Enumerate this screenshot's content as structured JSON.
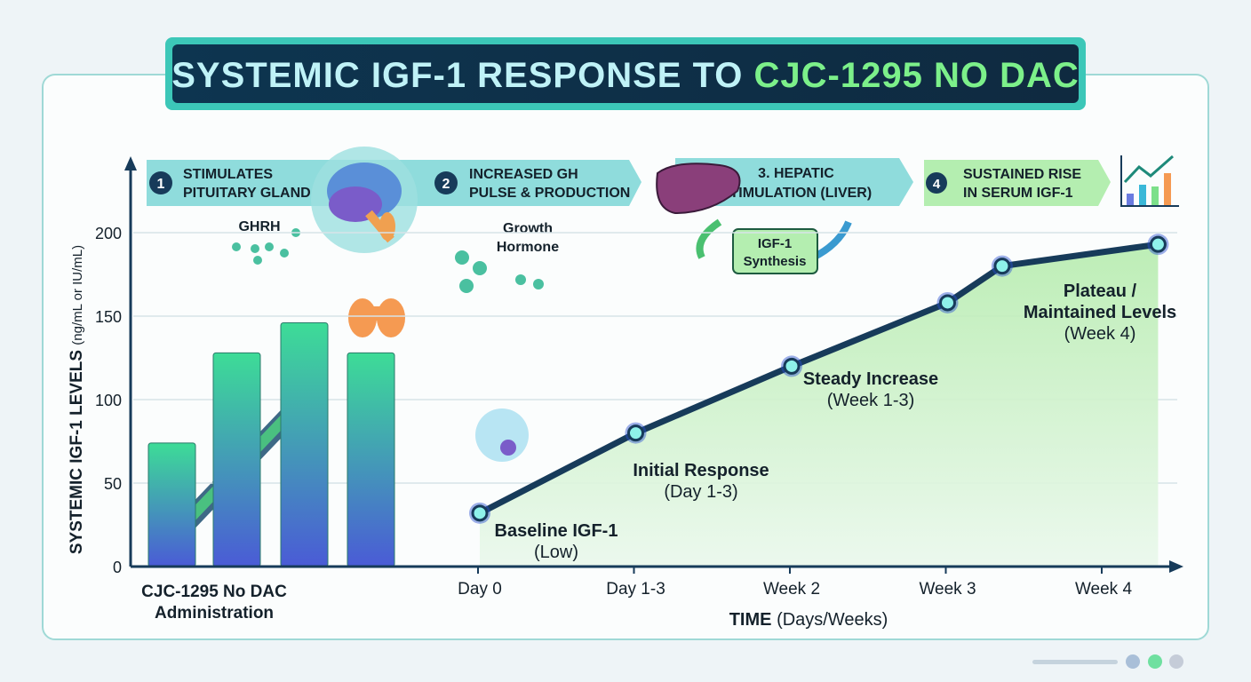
{
  "title": {
    "part1": "SYSTEMIC IGF-1 RESPONSE TO ",
    "part2": "CJC-1295 NO DAC"
  },
  "steps": [
    {
      "num": "1",
      "line1": "STIMULATES",
      "line2": "PITUITARY GLAND"
    },
    {
      "num": "2",
      "line1": "INCREASED GH",
      "line2": "PULSE & PRODUCTION"
    },
    {
      "num": "",
      "line1": "3. HEPATIC",
      "line2": "STIMULATION (LIVER)"
    },
    {
      "num": "4",
      "line1": "SUSTAINED RISE",
      "line2": "IN SERUM IGF-1"
    }
  ],
  "labels": {
    "ghrh": "GHRH",
    "gh1": "Growth",
    "gh2": "Hormone",
    "igf1": "IGF-1",
    "synth": "Synthesis",
    "admin1": "CJC-1295 No DAC",
    "admin2": "Administration"
  },
  "colors": {
    "line": "#173b5a",
    "bar_top": "#3ddc97",
    "bar_bottom": "#4a5bd6",
    "area": "#c8f0c0",
    "title_bg": "#0f2f47",
    "accent_green": "#7cf08a"
  },
  "chart_data": {
    "type": "line",
    "ylabel": "SYSTEMIC IGF-1 LEVELS",
    "ylabel_unit": "(ng/mL or IU/mL)",
    "xlabel": "TIME",
    "xlabel_unit": "(Days/Weeks)",
    "ylim": [
      0,
      200
    ],
    "yticks": [
      0,
      50,
      100,
      150,
      200
    ],
    "grid": true,
    "categories": [
      "Day 0",
      "Day 1-3",
      "Week 2",
      "Week 3",
      "Week 4"
    ],
    "series": [
      {
        "x": [
          0,
          1,
          2,
          3,
          3.35,
          4.35
        ],
        "values": [
          32,
          80,
          120,
          158,
          180,
          193
        ]
      }
    ],
    "bars": {
      "values": [
        74,
        128,
        146,
        128
      ]
    },
    "annotations": [
      {
        "line1": "Baseline IGF-1",
        "line2": "(Low)"
      },
      {
        "line1": "Initial Response",
        "line2": "(Day 1-3)"
      },
      {
        "line1": "Steady Increase",
        "line2": "(Week 1-3)"
      },
      {
        "line1": "Plateau /",
        "line2": "Maintained Levels",
        "line3": "(Week 4)"
      }
    ]
  }
}
